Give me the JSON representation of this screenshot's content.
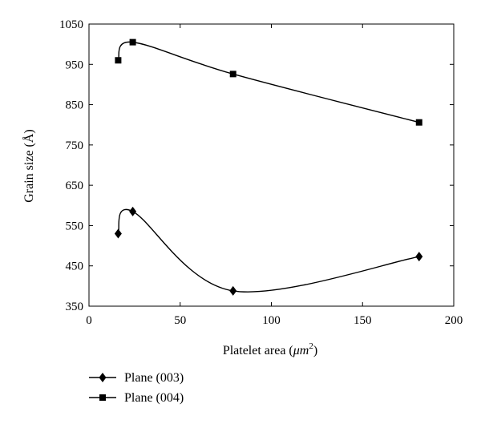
{
  "chart_data": {
    "type": "line",
    "title": "",
    "xlabel": "Platelet area (",
    "xlabel_unit": "μm",
    "xlabel_exp": "2",
    "xlabel_close": ")",
    "ylabel": "Grain size (Å)",
    "xlim": [
      0,
      200
    ],
    "ylim": [
      350,
      1050
    ],
    "xticks": [
      0,
      50,
      100,
      150,
      200
    ],
    "yticks": [
      350,
      450,
      550,
      650,
      750,
      850,
      950,
      1050
    ],
    "grid": false,
    "legend_position": "bottom-left",
    "series": [
      {
        "name": "Plane (003)",
        "marker": "diamond",
        "color": "#000000",
        "x": [
          16,
          24,
          79,
          181
        ],
        "y": [
          530,
          585,
          388,
          473
        ]
      },
      {
        "name": "Plane (004)",
        "marker": "square",
        "color": "#000000",
        "x": [
          16,
          24,
          79,
          181
        ],
        "y": [
          960,
          1005,
          926,
          806
        ]
      }
    ]
  }
}
